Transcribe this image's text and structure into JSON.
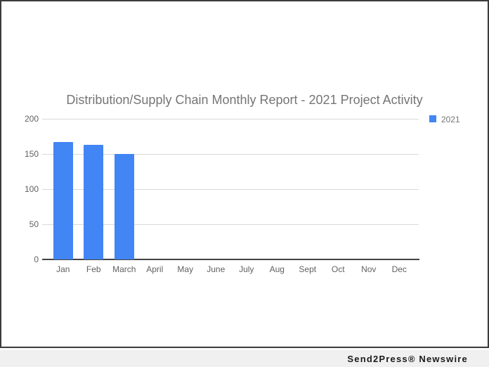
{
  "chart_data": {
    "type": "bar",
    "title": "Distribution/Supply Chain Monthly Report - 2021 Project Activity",
    "categories": [
      "Jan",
      "Feb",
      "March",
      "April",
      "May",
      "June",
      "July",
      "Aug",
      "Sept",
      "Oct",
      "Nov",
      "Dec"
    ],
    "series": [
      {
        "name": "2021",
        "values": [
          167,
          163,
          150,
          0,
          0,
          0,
          0,
          0,
          0,
          0,
          0,
          0
        ]
      }
    ],
    "xlabel": "",
    "ylabel": "",
    "ylim": [
      0,
      200
    ],
    "yticks": [
      0,
      50,
      100,
      150,
      200
    ],
    "grid": true,
    "legend_position": "right-top",
    "bar_color": "#4285f4",
    "title_color": "#757575",
    "axis_label_color": "#616161",
    "gridline_color": "#d9d9d9",
    "baseline_color": "#424242"
  },
  "legend": {
    "label": "2021",
    "swatch_color": "#4285f4"
  },
  "footer": {
    "credit": "Send2Press® Newswire"
  }
}
